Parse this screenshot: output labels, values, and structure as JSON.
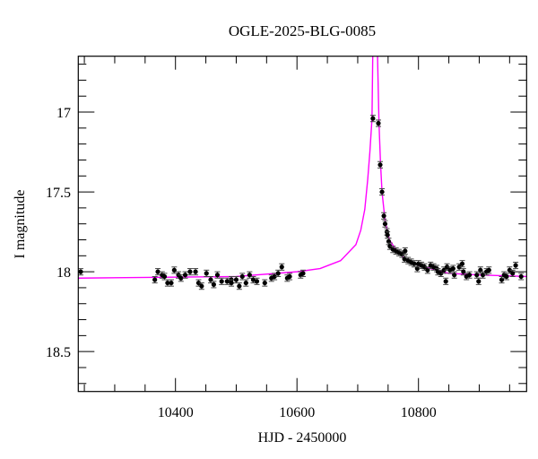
{
  "chart_data": {
    "type": "scatter",
    "title": "OGLE-2025-BLG-0085",
    "xlabel": "HJD - 2450000",
    "ylabel": "I magnitude",
    "xlim": [
      10240,
      10978
    ],
    "ylim": [
      18.75,
      16.65
    ],
    "y_inverted": true,
    "grid": false,
    "xticks": [
      10400,
      10600,
      10800
    ],
    "xtick_labels": [
      "10400",
      "10600",
      "10800"
    ],
    "x_minor_step": 50,
    "yticks": [
      17,
      17.5,
      18,
      18.5
    ],
    "ytick_labels": [
      "17",
      "17.5",
      "18",
      "18.5"
    ],
    "y_minor_step": 0.1,
    "colors": {
      "points": "#000000",
      "errorbars": "#444444",
      "model": "#ff00ff",
      "axes": "#000000"
    },
    "series": [
      {
        "type": "scatter-errorbar",
        "yerr": 0.02,
        "points": [
          [
            10244,
            18.0
          ],
          [
            10366,
            18.05
          ],
          [
            10371,
            18.0
          ],
          [
            10378,
            18.02
          ],
          [
            10382,
            18.03
          ],
          [
            10387,
            18.07
          ],
          [
            10393,
            18.07
          ],
          [
            10398,
            17.99
          ],
          [
            10405,
            18.02
          ],
          [
            10409,
            18.04
          ],
          [
            10416,
            18.02
          ],
          [
            10424,
            18.0
          ],
          [
            10433,
            18.0
          ],
          [
            10438,
            18.07
          ],
          [
            10443,
            18.09
          ],
          [
            10451,
            18.01
          ],
          [
            10458,
            18.05
          ],
          [
            10463,
            18.08
          ],
          [
            10469,
            18.02
          ],
          [
            10476,
            18.06
          ],
          [
            10485,
            18.06
          ],
          [
            10492,
            18.05
          ],
          [
            10492,
            18.07
          ],
          [
            10500,
            18.05
          ],
          [
            10505,
            18.09
          ],
          [
            10510,
            18.03
          ],
          [
            10516,
            18.07
          ],
          [
            10522,
            18.02
          ],
          [
            10528,
            18.05
          ],
          [
            10534,
            18.06
          ],
          [
            10547,
            18.07
          ],
          [
            10558,
            18.04
          ],
          [
            10563,
            18.03
          ],
          [
            10569,
            18.01
          ],
          [
            10575,
            17.97
          ],
          [
            10584,
            18.04
          ],
          [
            10588,
            18.03
          ],
          [
            10606,
            18.02
          ],
          [
            10610,
            18.01
          ],
          [
            10725,
            17.04
          ],
          [
            10734,
            17.07
          ],
          [
            10737,
            17.33
          ],
          [
            10740,
            17.5
          ],
          [
            10743,
            17.65
          ],
          [
            10745,
            17.7
          ],
          [
            10748,
            17.75
          ],
          [
            10749,
            17.77
          ],
          [
            10751,
            17.81
          ],
          [
            10753,
            17.84
          ],
          [
            10758,
            17.86
          ],
          [
            10763,
            17.87
          ],
          [
            10768,
            17.88
          ],
          [
            10773,
            17.89
          ],
          [
            10777,
            17.92
          ],
          [
            10778,
            17.87
          ],
          [
            10783,
            17.93
          ],
          [
            10788,
            17.94
          ],
          [
            10793,
            17.95
          ],
          [
            10798,
            17.98
          ],
          [
            10800,
            17.95
          ],
          [
            10805,
            17.96
          ],
          [
            10810,
            17.97
          ],
          [
            10815,
            17.99
          ],
          [
            10820,
            17.96
          ],
          [
            10825,
            17.97
          ],
          [
            10830,
            17.98
          ],
          [
            10832,
            18.0
          ],
          [
            10837,
            18.01
          ],
          [
            10842,
            17.99
          ],
          [
            10845,
            18.06
          ],
          [
            10847,
            17.97
          ],
          [
            10852,
            17.99
          ],
          [
            10857,
            17.98
          ],
          [
            10859,
            18.02
          ],
          [
            10867,
            17.97
          ],
          [
            10872,
            17.95
          ],
          [
            10874,
            18.0
          ],
          [
            10879,
            18.03
          ],
          [
            10884,
            18.02
          ],
          [
            10896,
            18.02
          ],
          [
            10899,
            18.06
          ],
          [
            10902,
            17.99
          ],
          [
            10906,
            18.02
          ],
          [
            10912,
            18.0
          ],
          [
            10916,
            17.99
          ],
          [
            10937,
            18.05
          ],
          [
            10941,
            18.02
          ],
          [
            10945,
            18.03
          ],
          [
            10950,
            17.99
          ],
          [
            10955,
            18.01
          ],
          [
            10960,
            17.96
          ],
          [
            10969,
            18.03
          ]
        ]
      },
      {
        "type": "line",
        "points": [
          [
            10240,
            18.04
          ],
          [
            10500,
            18.03
          ],
          [
            10600,
            18.0
          ],
          [
            10638,
            17.98
          ],
          [
            10672,
            17.93
          ],
          [
            10697,
            17.83
          ],
          [
            10705,
            17.74
          ],
          [
            10711.6,
            17.61
          ],
          [
            10716.5,
            17.42
          ],
          [
            10720,
            17.25
          ],
          [
            10723.5,
            17.04
          ],
          [
            10724.7,
            16.65
          ],
          [
            10729,
            15.8
          ],
          [
            10732.6,
            16.65
          ],
          [
            10735,
            17.07
          ],
          [
            10737.5,
            17.32
          ],
          [
            10740,
            17.5
          ],
          [
            10745,
            17.68
          ],
          [
            10752,
            17.8
          ],
          [
            10761,
            17.85
          ],
          [
            10775,
            17.91
          ],
          [
            10800,
            17.96
          ],
          [
            10850,
            18.01
          ],
          [
            10900,
            18.02
          ],
          [
            10978,
            18.03
          ]
        ]
      }
    ]
  }
}
